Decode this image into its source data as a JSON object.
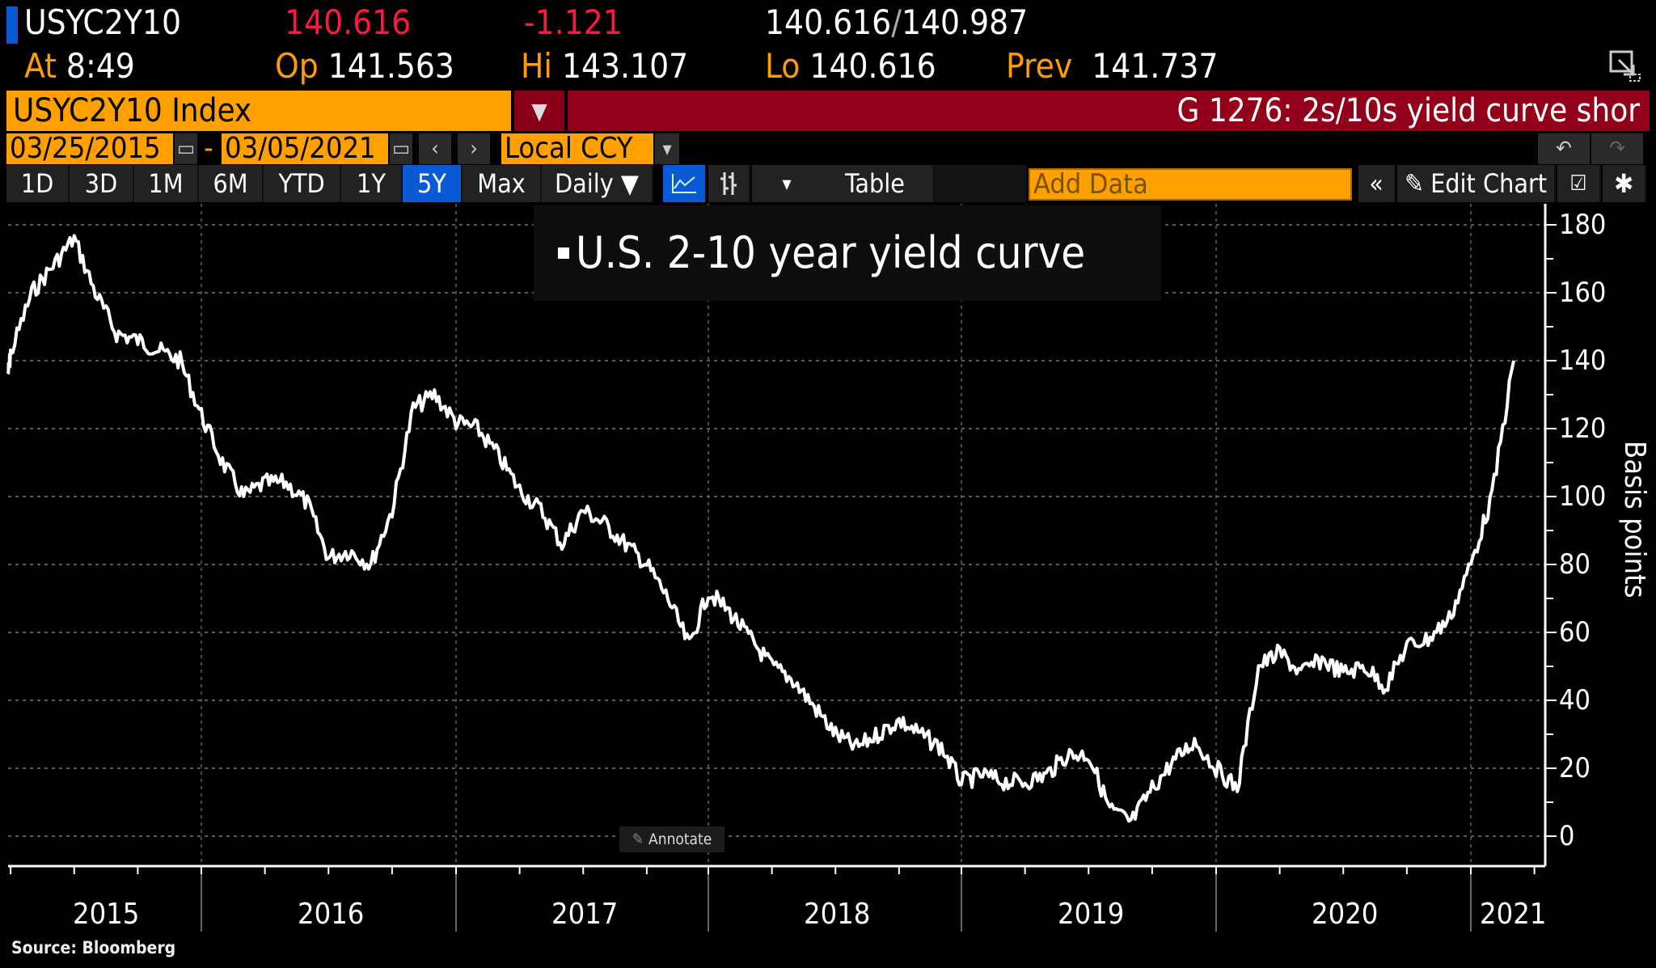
{
  "quote": {
    "ticker": "USYC2Y10",
    "last": "140.616",
    "change": "-1.121",
    "bid": "140.616",
    "ask": "140.987",
    "at_label": "At",
    "time": "8:49",
    "open_label": "Op",
    "open": "141.563",
    "high_label": "Hi",
    "high": "143.107",
    "low_label": "Lo",
    "low": "140.616",
    "prev_label": "Prev",
    "prev": "141.737"
  },
  "security": {
    "name": "USYC2Y10 Index",
    "title": "G 1276: 2s/10s yield curve shor"
  },
  "dates": {
    "start": "03/25/2015",
    "separator": "-",
    "end": "03/05/2021",
    "currency": "Local CCY"
  },
  "toolbar": {
    "ranges": [
      "1D",
      "3D",
      "1M",
      "6M",
      "YTD",
      "1Y",
      "5Y",
      "Max"
    ],
    "selected_range": "5Y",
    "frequency": "Daily ▼",
    "table_label": "Table",
    "add_data_placeholder": "Add Data",
    "collapse_label": "«",
    "edit_chart_label": "Edit Chart"
  },
  "chart_data": {
    "type": "line",
    "title": "",
    "legend": [
      "U.S. 2-10 year yield curve"
    ],
    "xlabel": "",
    "ylabel": "Basis points",
    "ylim": [
      -5,
      180
    ],
    "yticks": [
      0,
      20,
      40,
      60,
      80,
      100,
      120,
      140,
      160,
      180
    ],
    "xticks": [
      "2015",
      "2016",
      "2017",
      "2018",
      "2019",
      "2020",
      "2021"
    ],
    "grid": true,
    "series": [
      {
        "name": "U.S. 2-10 year yield curve",
        "x": [
          "2015-03",
          "2015-04",
          "2015-05",
          "2015-06",
          "2015-07",
          "2015-08",
          "2015-09",
          "2015-10",
          "2015-11",
          "2015-12",
          "2016-01",
          "2016-02",
          "2016-03",
          "2016-04",
          "2016-05",
          "2016-06",
          "2016-07",
          "2016-08",
          "2016-09",
          "2016-10",
          "2016-11",
          "2016-12",
          "2017-01",
          "2017-02",
          "2017-03",
          "2017-04",
          "2017-05",
          "2017-06",
          "2017-07",
          "2017-08",
          "2017-09",
          "2017-10",
          "2017-11",
          "2017-12",
          "2018-01",
          "2018-02",
          "2018-03",
          "2018-04",
          "2018-05",
          "2018-06",
          "2018-07",
          "2018-08",
          "2018-09",
          "2018-10",
          "2018-11",
          "2018-12",
          "2019-01",
          "2019-02",
          "2019-03",
          "2019-04",
          "2019-05",
          "2019-06",
          "2019-07",
          "2019-08",
          "2019-09",
          "2019-10",
          "2019-11",
          "2019-12",
          "2020-01",
          "2020-02",
          "2020-03",
          "2020-04",
          "2020-05",
          "2020-06",
          "2020-07",
          "2020-08",
          "2020-09",
          "2020-10",
          "2020-11",
          "2020-12",
          "2021-01",
          "2021-02",
          "2021-03"
        ],
        "values": [
          136,
          142,
          160,
          168,
          176,
          160,
          148,
          146,
          143,
          140,
          124,
          110,
          100,
          104,
          104,
          98,
          82,
          84,
          80,
          96,
          126,
          130,
          122,
          120,
          112,
          102,
          96,
          86,
          96,
          92,
          86,
          80,
          70,
          56,
          72,
          66,
          58,
          50,
          46,
          38,
          30,
          26,
          30,
          34,
          30,
          26,
          16,
          18,
          16,
          16,
          18,
          24,
          24,
          8,
          4,
          14,
          22,
          28,
          20,
          14,
          50,
          54,
          48,
          52,
          48,
          50,
          44,
          56,
          58,
          64,
          80,
          100,
          140
        ]
      }
    ]
  },
  "annotate_label": "Annotate",
  "source": "Source: Bloomberg"
}
